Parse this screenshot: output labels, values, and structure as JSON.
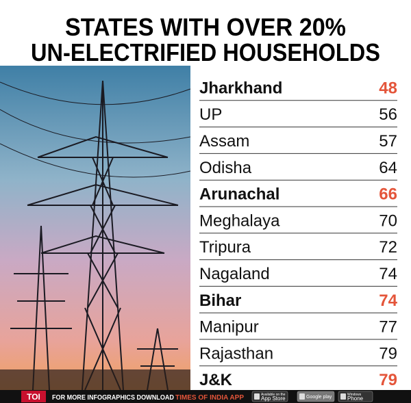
{
  "header": {
    "title_lines": [
      "STATES WITH OVER 20%",
      "UN-ELECTRIFIED HOUSEHOLDS"
    ]
  },
  "table": {
    "highlight_color": "#e4553a",
    "rows": [
      {
        "name": "Jharkhand",
        "value": "48",
        "highlight": true
      },
      {
        "name": "UP",
        "value": "56",
        "highlight": false
      },
      {
        "name": "Assam",
        "value": "57",
        "highlight": false
      },
      {
        "name": "Odisha",
        "value": "64",
        "highlight": false
      },
      {
        "name": "Arunachal",
        "value": "66",
        "highlight": true
      },
      {
        "name": "Meghalaya",
        "value": "70",
        "highlight": false
      },
      {
        "name": "Tripura",
        "value": "72",
        "highlight": false
      },
      {
        "name": "Nagaland",
        "value": "74",
        "highlight": false
      },
      {
        "name": "Bihar",
        "value": "74",
        "highlight": true
      },
      {
        "name": "Manipur",
        "value": "77",
        "highlight": false
      },
      {
        "name": "Rajasthan",
        "value": "79",
        "highlight": false
      },
      {
        "name": "J&K",
        "value": "79",
        "highlight": true
      }
    ]
  },
  "footer": {
    "logo": "TOI",
    "text": "FOR MORE  INFOGRAPHICS DOWNLOAD",
    "app": "TIMES OF INDIA APP",
    "badges": [
      {
        "small": "Available on the",
        "big": "App Store"
      },
      {
        "small": "",
        "big": "Google play"
      },
      {
        "small": "Windows",
        "big": "Phone"
      }
    ]
  }
}
